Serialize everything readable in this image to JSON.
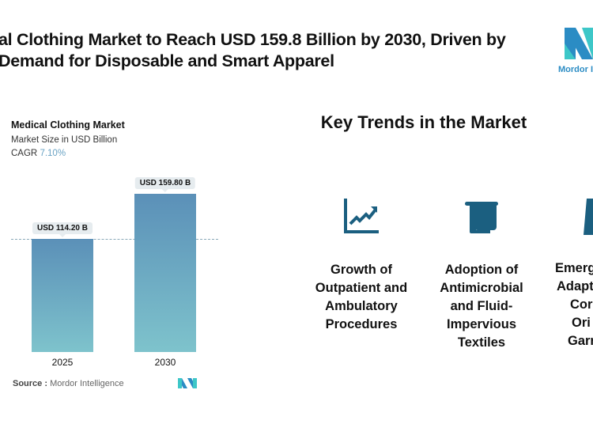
{
  "header": {
    "title_line1": "al Clothing Market to Reach USD 159.8 Billion by 2030, Driven by",
    "title_line2": " Demand for Disposable and Smart Apparel",
    "logo_text": "Mordor In",
    "logo_colors": [
      "#2b8cc4",
      "#3dc7c8"
    ]
  },
  "chart_data": {
    "type": "bar",
    "title": "Medical Clothing Market",
    "subtitle": "Market Size in USD Billion",
    "cagr_label": "CAGR",
    "cagr_value": "7.10%",
    "categories": [
      "2025",
      "2030"
    ],
    "values": [
      114.2,
      159.8
    ],
    "data_labels": [
      "USD 114.20 B",
      "USD 159.80 B"
    ],
    "reference_line": 114.2,
    "bar_gradient": [
      "#5b90b8",
      "#7ec3cc"
    ],
    "source_label": "Source :",
    "source": "Mordor Intelligence"
  },
  "trends": {
    "heading": "Key Trends in the Market",
    "icon_color": "#1b5f80",
    "items": [
      {
        "icon": "growth-chart-icon",
        "lines": [
          "Growth of",
          "Outpatient and",
          "Ambulatory",
          "Procedures"
        ]
      },
      {
        "icon": "textile-towel-icon",
        "lines": [
          "Adoption of",
          "Antimicrobial",
          "and Fluid-",
          "Impervious",
          "Textiles"
        ]
      },
      {
        "icon": "garment-icon",
        "lines": [
          "Emerg",
          "Adapt",
          "Cor",
          "Ori",
          "Garr"
        ]
      }
    ]
  }
}
